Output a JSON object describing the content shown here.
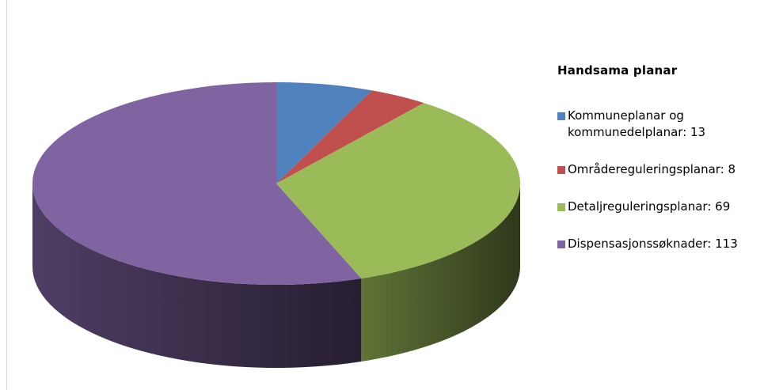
{
  "chart_data": {
    "type": "pie",
    "title": "Handsama planar",
    "legend_position": "right",
    "slices": [
      {
        "label": "Kommuneplanar og kommunedelplanar: 13",
        "value": 13,
        "color": "#4F81BD"
      },
      {
        "label": "Områdereguleringsplanar: 8",
        "value": 8,
        "color": "#C0504D"
      },
      {
        "label": "Detaljreguleringsplanar: 69",
        "value": 69,
        "color": "#9BBB59"
      },
      {
        "label": "Dispensasjonssøknader: 113",
        "value": 113,
        "color": "#8064A2"
      }
    ]
  }
}
